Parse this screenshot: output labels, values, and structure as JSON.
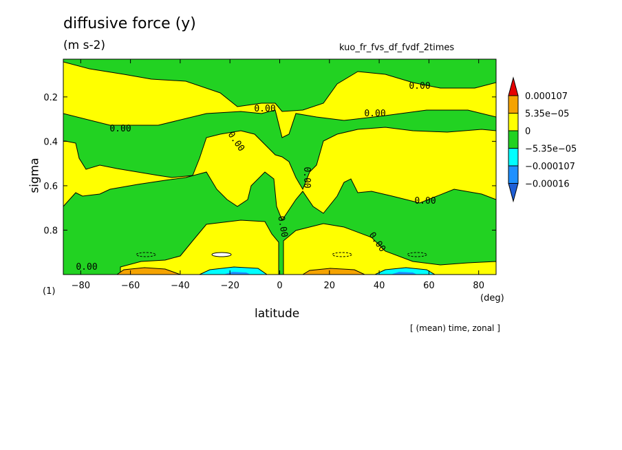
{
  "header": {
    "title": "diffusive force (y)",
    "units": "(m s-2)",
    "run_name": "kuo_fr_fvs_df_fvdf_2times",
    "averaging_note": "[ (mean) time, zonal ]"
  },
  "chart_data": {
    "type": "heatmap",
    "title": "diffusive force (y)",
    "xlabel": "latitude",
    "xunit": "(deg)",
    "ylabel": "sigma",
    "yunit": "(1)",
    "xlim": [
      -87,
      87
    ],
    "ylim": [
      1.0,
      0.03
    ],
    "x_ticks": [
      -80,
      -60,
      -40,
      -20,
      0,
      20,
      40,
      60,
      80
    ],
    "x_tick_labels": [
      "−80",
      "−60",
      "−40",
      "−20",
      "0",
      "20",
      "40",
      "60",
      "80"
    ],
    "y_ticks": [
      0.2,
      0.4,
      0.6,
      0.8
    ],
    "y_tick_labels": [
      "0.2",
      "0.4",
      "0.6",
      "0.8"
    ],
    "contour_label": "0.00",
    "colorbar": {
      "labels": [
        "0.000107",
        "5.35e−05",
        "0",
        "−5.35e−05",
        "−0.000107",
        "−0.00016"
      ],
      "colors": [
        "#e60000",
        "#f5a300",
        "#ffff00",
        "#22d222",
        "#00ffff",
        "#1e90ff",
        "#1f5fd6"
      ]
    },
    "regions_description_values": {
      "positive_band_values": "0 to 5.35e-05",
      "negative_band_values": "-5.35e-05 to 0"
    }
  },
  "colors": {
    "yellow": "#ffff00",
    "green": "#22d222",
    "orange": "#f5a300",
    "cyan": "#00ffff",
    "blue": "#1e90ff"
  }
}
